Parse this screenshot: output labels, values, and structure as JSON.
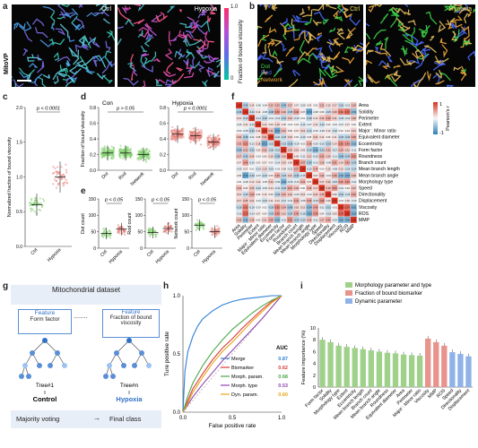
{
  "panel_letters": {
    "a": "a",
    "b": "b",
    "c": "c",
    "d": "d",
    "e": "e",
    "f": "f",
    "g": "g",
    "h": "h",
    "i": "i"
  },
  "panel_a": {
    "row_label": "MitoVP",
    "left_tag": "Ctrl",
    "right_tag": "Hypoxia",
    "colorbar_label": "Fraction of bound viscosity",
    "colorbar_top": "1.0",
    "colorbar_bottom": "0",
    "colors": {
      "ctrl_mito": "#5fd3e6",
      "hypoxia_mito": "#e84fb3",
      "colorbar_top": "#ff2a6d",
      "colorbar_bottom": "#00c8a0"
    }
  },
  "panel_b": {
    "left_tag": "Ctrl",
    "right_tag": "Hypoxia",
    "legend": [
      {
        "label": "Dot",
        "color": "#3cd34a"
      },
      {
        "label": "Rod",
        "color": "#4a6cff"
      },
      {
        "label": "Network",
        "color": "#f0a83a"
      }
    ]
  },
  "panel_c": {
    "ylabel": "Normalized fraction of bound viscosity",
    "categories": [
      "Ctrl",
      "Hypoxia"
    ],
    "pvalue": "p < 0.0001",
    "yticks": [
      "0.0",
      "0.5",
      "1.0",
      "1.5",
      "2.0"
    ],
    "colors": {
      "ctrl": "#7fcf6b",
      "hypoxia": "#e8827a"
    }
  },
  "panel_d": {
    "left_title": "Con",
    "right_title": "Hypoxia",
    "ylabel": "Fraction of bound viscosity",
    "categories": [
      "Dot",
      "Rod",
      "Network"
    ],
    "left_p": "p > 0.05",
    "right_p": "p < 0.0001",
    "yticks": [
      "0.0",
      "0.2",
      "0.4",
      "0.6",
      "0.8"
    ]
  },
  "panel_e": {
    "plots": [
      {
        "ylabel": "Dot count",
        "p": "p < 0.05",
        "yticks": [
          "0",
          "50",
          "100",
          "150"
        ]
      },
      {
        "ylabel": "Rod count",
        "p": "p < 0.05",
        "yticks": [
          "0",
          "50",
          "100",
          "150"
        ]
      },
      {
        "ylabel": "Network count",
        "p": "p < 0.05",
        "yticks": [
          "0",
          "50",
          "100",
          "150"
        ]
      }
    ],
    "categories": [
      "Ctrl",
      "Hypoxia"
    ]
  },
  "panel_f": {
    "labels": [
      "Area",
      "Solidity",
      "Perimeter",
      "Extent",
      "Major : Minor ratio",
      "Equivalent diameter",
      "Eccentricity",
      "Form factor",
      "Roundness",
      "Branch count",
      "Mean branch length",
      "Mean branch angle",
      "Morphology type",
      "Speed",
      "Directionality",
      "Displacement",
      "Viscosity",
      "ROS",
      "MMP"
    ],
    "colorbar_label": "Pearson's r",
    "colorbar_top": "1",
    "colorbar_bottom": "-1",
    "colors": {
      "pos": "#d7301f",
      "neg": "#2c7fb8",
      "mid": "#f7f7f7"
    },
    "matrix": [
      [
        1.0,
        -0.36,
        0.14,
        -0.06,
        -0.04,
        0.29,
        0.33,
        -0.44,
        0.27,
        0.07,
        -0.09,
        0.05,
        0.02,
        0.31,
        0.15,
        0.17,
        -0.26,
        -0.12,
        0.29
      ],
      [
        -0.36,
        1.0,
        -0.24,
        0.11,
        -0.08,
        -0.38,
        0.52,
        0.32,
        -0.35,
        0.46,
        0.07,
        -0.74,
        -0.08,
        0.06,
        -0.25,
        0.28,
        0.62,
        0.72,
        -0.52
      ],
      [
        0.14,
        -0.24,
        1.0,
        -0.14,
        -0.32,
        -0.11,
        -0.13,
        -0.32,
        0.24,
        -0.16,
        0.01,
        -0.29,
        0.12,
        0.26,
        0.4,
        0.21,
        -0.18,
        -0.14,
        0.28
      ],
      [
        -0.06,
        0.11,
        -0.14,
        1.0,
        0.14,
        0.08,
        0.18,
        0.06,
        -0.02,
        0.03,
        -0.16,
        -0.07,
        0.13,
        -0.22,
        0.03,
        -0.04,
        -0.07,
        0.07,
        0.02
      ],
      [
        -0.04,
        -0.08,
        -0.32,
        0.14,
        1.0,
        0.31,
        -0.71,
        0.31,
        0.06,
        0.07,
        0.19,
        -0.24,
        -0.05,
        -0.09,
        0.1,
        -0.2,
        0.02,
        0.04,
        0.21
      ],
      [
        0.29,
        -0.38,
        -0.11,
        0.08,
        0.31,
        1.0,
        -0.22,
        -0.25,
        0.18,
        0.03,
        -0.19,
        0.05,
        0.24,
        0.14,
        0.06,
        0.11,
        -0.29,
        -0.3,
        0.39
      ],
      [
        0.33,
        0.52,
        -0.13,
        0.18,
        -0.71,
        -0.22,
        1.0,
        -0.23,
        -0.38,
        -0.14,
        -0.03,
        0.38,
        -0.09,
        -0.16,
        -0.33,
        0.14,
        0.55,
        0.49,
        -0.52
      ],
      [
        -0.44,
        0.32,
        -0.32,
        0.06,
        0.31,
        -0.25,
        -0.23,
        1.0,
        0.26,
        0.19,
        0.09,
        -0.29,
        -0.6,
        -0.32,
        0.32,
        -0.17,
        0.34,
        0.22,
        -0.11
      ],
      [
        0.27,
        -0.35,
        0.24,
        -0.02,
        0.06,
        0.18,
        -0.38,
        0.26,
        1.0,
        0.09,
        -0.11,
        0.21,
        -0.15,
        0.41,
        0.24,
        -0.11,
        -0.46,
        -0.34,
        0.51
      ],
      [
        0.07,
        0.46,
        -0.16,
        0.03,
        0.07,
        0.03,
        -0.14,
        0.19,
        0.09,
        1.0,
        0.37,
        -0.36,
        -0.1,
        0.29,
        -0.08,
        0.41,
        0.18,
        0.4,
        -0.33
      ],
      [
        -0.09,
        0.07,
        0.01,
        -0.16,
        0.19,
        -0.19,
        -0.03,
        0.09,
        -0.11,
        0.37,
        1.0,
        -0.15,
        0.34,
        0.0,
        0.15,
        -0.08,
        0.15,
        -0.18,
        -0.24
      ],
      [
        0.05,
        -0.74,
        -0.29,
        -0.07,
        -0.24,
        0.05,
        0.38,
        -0.29,
        0.21,
        -0.36,
        -0.15,
        1.0,
        0.07,
        0.33,
        -0.04,
        0.38,
        -0.54,
        -0.62,
        0.28
      ],
      [
        0.02,
        -0.08,
        0.12,
        0.13,
        -0.05,
        0.24,
        -0.09,
        -0.6,
        -0.15,
        -0.1,
        0.34,
        0.07,
        1.0,
        0.17,
        0.22,
        -0.18,
        0.45,
        0.49,
        -0.11
      ],
      [
        0.31,
        0.06,
        0.26,
        -0.22,
        -0.09,
        0.14,
        -0.16,
        -0.32,
        0.41,
        0.29,
        0.0,
        0.33,
        0.17,
        1.0,
        0.28,
        0.5,
        -0.11,
        0.04,
        0.27
      ],
      [
        0.15,
        -0.25,
        0.4,
        0.03,
        0.1,
        0.06,
        -0.33,
        0.32,
        0.24,
        -0.08,
        0.15,
        -0.04,
        0.22,
        0.28,
        1.0,
        0.08,
        -0.31,
        -0.18,
        0.4
      ],
      [
        0.17,
        0.28,
        0.21,
        -0.04,
        -0.2,
        0.11,
        0.14,
        -0.17,
        -0.11,
        0.41,
        -0.08,
        0.38,
        -0.18,
        0.5,
        0.08,
        1.0,
        -0.01,
        0.09,
        -0.1
      ],
      [
        -0.26,
        0.62,
        -0.18,
        -0.07,
        0.02,
        -0.29,
        0.55,
        0.34,
        -0.46,
        0.18,
        0.15,
        -0.54,
        0.45,
        -0.11,
        -0.31,
        -0.01,
        1.0,
        0.74,
        -0.61
      ],
      [
        -0.12,
        0.72,
        -0.14,
        0.07,
        0.04,
        -0.3,
        0.49,
        0.22,
        -0.34,
        0.4,
        -0.18,
        -0.62,
        0.49,
        0.04,
        -0.18,
        0.09,
        0.74,
        1.0,
        -0.6
      ],
      [
        0.29,
        -0.52,
        0.28,
        0.02,
        0.21,
        0.39,
        -0.52,
        -0.11,
        0.51,
        -0.33,
        -0.24,
        0.28,
        -0.11,
        0.27,
        0.4,
        -0.1,
        -0.61,
        -0.6,
        1.0
      ]
    ]
  },
  "panel_g": {
    "title": "Mitochondrial dataset",
    "feature_label": "Feature",
    "feat1_sub": "Form factor",
    "featn_sub": "Fraction of bound viscosity",
    "tree1": "Tree#1",
    "treen": "Tree#n",
    "out1": "Control",
    "outn": "Hypoxia",
    "vote": "Majority voting",
    "final": "Final class",
    "dots": "........"
  },
  "chart_data": [
    {
      "type": "line",
      "panel": "h",
      "xlabel": "False positive rate",
      "ylabel": "Ture positive rate",
      "xlim": [
        0,
        1
      ],
      "ylim": [
        0,
        1
      ],
      "xticks": [
        "0.0",
        "0.5",
        "1.0"
      ],
      "yticks": [
        "0.0",
        "0.5",
        "1.0"
      ],
      "legend_title": "AUC",
      "legend_placement": "bottom-right",
      "series": [
        {
          "name": "Merge",
          "auc": "0.87",
          "color": "#2f7fd6",
          "x": [
            0,
            0.02,
            0.05,
            0.1,
            0.15,
            0.2,
            0.3,
            0.4,
            0.5,
            0.6,
            0.7,
            0.8,
            0.9,
            1.0
          ],
          "y": [
            0,
            0.35,
            0.52,
            0.65,
            0.74,
            0.8,
            0.87,
            0.92,
            0.95,
            0.97,
            0.98,
            0.99,
            1.0,
            1.0
          ]
        },
        {
          "name": "Biomarker",
          "auc": "0.62",
          "color": "#d93a3a",
          "x": [
            0,
            0.05,
            0.1,
            0.2,
            0.3,
            0.4,
            0.5,
            0.6,
            0.7,
            0.8,
            0.9,
            1.0
          ],
          "y": [
            0,
            0.1,
            0.2,
            0.33,
            0.45,
            0.55,
            0.63,
            0.72,
            0.8,
            0.88,
            0.95,
            1.0
          ]
        },
        {
          "name": "Morph. param.",
          "auc": "0.68",
          "color": "#4aa84a",
          "x": [
            0,
            0.05,
            0.1,
            0.2,
            0.3,
            0.4,
            0.5,
            0.6,
            0.7,
            0.8,
            0.9,
            1.0
          ],
          "y": [
            0,
            0.14,
            0.25,
            0.4,
            0.52,
            0.62,
            0.71,
            0.78,
            0.85,
            0.91,
            0.96,
            1.0
          ]
        },
        {
          "name": "Morph. type",
          "auc": "0.53",
          "color": "#8e44ad",
          "x": [
            0,
            0.1,
            0.2,
            0.3,
            0.4,
            0.5,
            0.6,
            0.7,
            0.8,
            0.9,
            1.0
          ],
          "y": [
            0,
            0.13,
            0.24,
            0.34,
            0.44,
            0.53,
            0.62,
            0.71,
            0.8,
            0.9,
            1.0
          ]
        },
        {
          "name": "Dyn. param.",
          "auc": "0.60",
          "color": "#e8a317",
          "x": [
            0,
            0.05,
            0.1,
            0.2,
            0.3,
            0.4,
            0.5,
            0.6,
            0.7,
            0.8,
            0.9,
            1.0
          ],
          "y": [
            0,
            0.08,
            0.17,
            0.3,
            0.42,
            0.52,
            0.6,
            0.69,
            0.78,
            0.86,
            0.94,
            1.0
          ]
        }
      ]
    },
    {
      "type": "bar",
      "panel": "i",
      "ylabel": "Feature importance (%)",
      "ylim": [
        0,
        10
      ],
      "yticks": [
        "0",
        "2",
        "4",
        "6",
        "8",
        "10"
      ],
      "legend_placement": "top-right",
      "groups": [
        {
          "name": "Morphology parameter and type",
          "color": "#9fd18b"
        },
        {
          "name": "Fraction of bound biomarker",
          "color": "#e8938c"
        },
        {
          "name": "Dynamic parameter",
          "color": "#8fb3e8"
        }
      ],
      "categories": [
        "Form factor",
        "Solidity",
        "Morphology type",
        "Extent",
        "Eccentricity",
        "Mean branch length",
        "Branch count",
        "Mean branch angle",
        "Roundness",
        "Equivalent diameter",
        "Area",
        "Perimeter",
        "Major : Minor ratio",
        "Viscosity",
        "MMP",
        "ROS",
        "Speed",
        "Directionality",
        "Displacement"
      ],
      "values": [
        8.0,
        7.6,
        7.0,
        6.8,
        6.6,
        6.4,
        6.2,
        6.0,
        5.8,
        5.7,
        5.5,
        5.4,
        5.3,
        8.2,
        7.6,
        7.0,
        5.9,
        5.6,
        5.2
      ],
      "group_index": [
        0,
        0,
        0,
        0,
        0,
        0,
        0,
        0,
        0,
        0,
        0,
        0,
        0,
        1,
        1,
        1,
        2,
        2,
        2
      ]
    }
  ]
}
